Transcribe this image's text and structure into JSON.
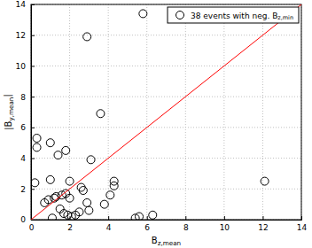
{
  "chart_data": {
    "type": "scatter",
    "xlabel": "Bz,mean",
    "ylabel": "|By,mean|",
    "xlim": [
      0,
      14
    ],
    "ylim": [
      0,
      14
    ],
    "xticks": [
      0,
      2,
      4,
      6,
      8,
      10,
      12,
      14
    ],
    "yticks": [
      0,
      2,
      4,
      6,
      8,
      10,
      12,
      14
    ],
    "grid": true,
    "legend": "top-right",
    "series": [
      {
        "name": "38 events with neg. Bz,min",
        "type": "scatter",
        "marker": "circle",
        "color": "#000000",
        "x": [
          0.2,
          0.3,
          0.3,
          0.7,
          0.9,
          1.0,
          1.0,
          1.1,
          1.2,
          1.3,
          1.4,
          1.5,
          1.6,
          1.7,
          1.8,
          1.8,
          1.9,
          2.0,
          2.0,
          2.1,
          2.3,
          2.5,
          2.6,
          2.7,
          2.9,
          2.9,
          3.0,
          3.1,
          3.6,
          3.8,
          4.1,
          4.3,
          4.3,
          5.4,
          5.6,
          5.8,
          6.3,
          12.1
        ],
        "values": [
          2.4,
          5.3,
          4.7,
          1.1,
          1.3,
          5.0,
          2.6,
          0.1,
          1.4,
          1.5,
          4.2,
          0.7,
          1.6,
          0.4,
          1.7,
          4.5,
          0.3,
          2.5,
          1.4,
          0.2,
          0.3,
          0.5,
          2.1,
          1.9,
          11.9,
          1.1,
          0.6,
          3.9,
          6.9,
          1.0,
          1.6,
          2.2,
          2.5,
          0.1,
          0.2,
          13.4,
          0.3,
          2.5
        ]
      },
      {
        "type": "line",
        "line_style": "solid",
        "color": "#ff0000",
        "x": [
          0,
          14
        ],
        "values": [
          0,
          14
        ]
      }
    ]
  }
}
